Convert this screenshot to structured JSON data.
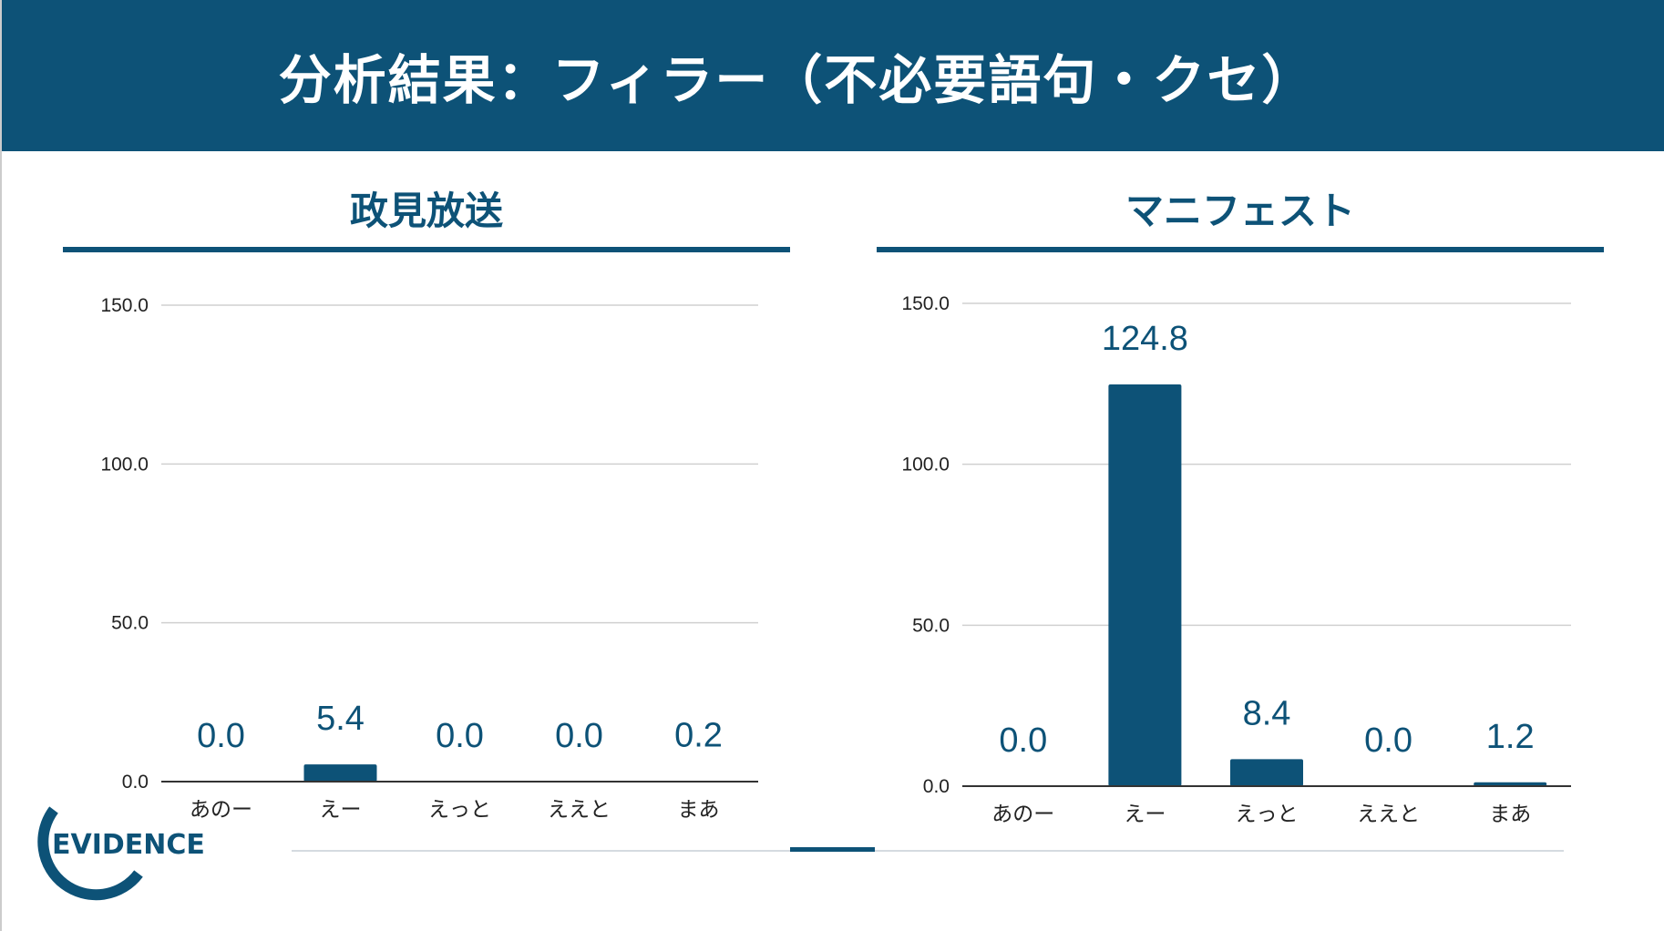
{
  "header": {
    "title": "分析結果：フィラー（不必要語句・クセ）"
  },
  "logo": {
    "text": "EVIDENCE"
  },
  "colors": {
    "primary": "#0d5277",
    "grid": "#d0d0d0"
  },
  "chart_data": [
    {
      "type": "bar",
      "title": "政見放送",
      "categories": [
        "あのー",
        "えー",
        "えっと",
        "ええと",
        "まあ"
      ],
      "values": [
        0.0,
        5.4,
        0.0,
        0.0,
        0.2
      ],
      "data_labels": [
        "0.0",
        "5.4",
        "0.0",
        "0.0",
        "0.2"
      ],
      "yticks": [
        "0.0",
        "50.0",
        "100.0",
        "150.0"
      ],
      "ylim": [
        0,
        150
      ],
      "grid": true
    },
    {
      "type": "bar",
      "title": "マニフェスト",
      "categories": [
        "あのー",
        "えー",
        "えっと",
        "ええと",
        "まあ"
      ],
      "values": [
        0.0,
        124.8,
        8.4,
        0.0,
        1.2
      ],
      "data_labels": [
        "0.0",
        "124.8",
        "8.4",
        "0.0",
        "1.2"
      ],
      "yticks": [
        "0.0",
        "50.0",
        "100.0",
        "150.0"
      ],
      "ylim": [
        0,
        150
      ],
      "grid": true
    }
  ]
}
